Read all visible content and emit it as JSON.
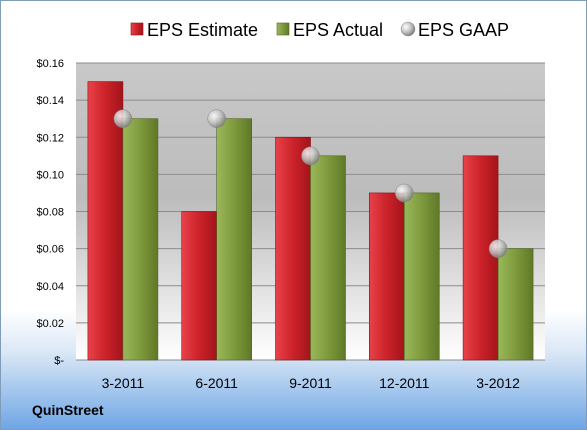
{
  "company": "QuinStreet",
  "chart_data": {
    "type": "bar",
    "categories": [
      "3-2011",
      "6-2011",
      "9-2011",
      "12-2011",
      "3-2012"
    ],
    "series": [
      {
        "name": "EPS Estimate",
        "kind": "bar",
        "color": "#cc2229",
        "values": [
          0.15,
          0.08,
          0.12,
          0.09,
          0.11
        ]
      },
      {
        "name": "EPS Actual",
        "kind": "bar",
        "color": "#7e9a3c",
        "values": [
          0.13,
          0.13,
          0.11,
          0.09,
          0.06
        ]
      },
      {
        "name": "EPS GAAP",
        "kind": "marker",
        "color": "#a8a8a8",
        "values": [
          0.13,
          0.13,
          0.11,
          0.09,
          0.06
        ]
      }
    ],
    "ylim": [
      0,
      0.16
    ],
    "yticks": [
      0,
      0.02,
      0.04,
      0.06,
      0.08,
      0.1,
      0.12,
      0.14,
      0.16
    ],
    "ytick_labels": [
      "$-",
      "$0.02",
      "$0.04",
      "$0.06",
      "$0.08",
      "$0.10",
      "$0.12",
      "$0.14",
      "$0.16"
    ],
    "grid": true,
    "legend": "top"
  }
}
